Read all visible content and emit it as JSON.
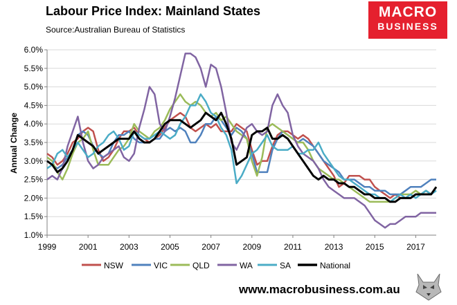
{
  "header": {
    "title": "Labour Price Index: Mainland States",
    "source": "Source:Australian Bureau of Statistics"
  },
  "logo": {
    "line1": "MACRO",
    "line2": "BUSINESS"
  },
  "footer": {
    "url": "www.macrobusiness.com.au"
  },
  "colors": {
    "NSW": "#c0504d",
    "VIC": "#4f81bd",
    "QLD": "#9bbb59",
    "WA": "#8064a2",
    "SA": "#4bacc6",
    "National": "#000000",
    "logo_bg": "#e5202e"
  },
  "chart_data": {
    "type": "line",
    "title": "Labour Price Index: Mainland States",
    "xlabel": "",
    "ylabel": "Annual Change",
    "xlim": [
      1999,
      2018
    ],
    "ylim": [
      1.0,
      6.0
    ],
    "yticks": [
      "1.0%",
      "1.5%",
      "2.0%",
      "2.5%",
      "3.0%",
      "3.5%",
      "4.0%",
      "4.5%",
      "5.0%",
      "5.5%",
      "6.0%"
    ],
    "xticks": [
      "1999",
      "2001",
      "2003",
      "2005",
      "2007",
      "2009",
      "2011",
      "2013",
      "2015",
      "2017"
    ],
    "x_start": 1999.0,
    "x_step": 0.25,
    "legend_position": "bottom",
    "series": [
      {
        "name": "NSW",
        "values": [
          3.2,
          3.1,
          2.9,
          3.0,
          3.2,
          3.5,
          3.6,
          3.8,
          3.9,
          3.8,
          3.3,
          3.0,
          3.1,
          3.3,
          3.6,
          3.8,
          3.8,
          3.9,
          3.7,
          3.6,
          3.5,
          3.6,
          3.7,
          3.9,
          4.1,
          4.2,
          4.3,
          4.2,
          3.9,
          3.8,
          3.9,
          4.0,
          3.9,
          4.0,
          3.8,
          3.8,
          3.8,
          4.0,
          3.9,
          3.8,
          3.3,
          2.9,
          3.0,
          3.0,
          3.4,
          3.7,
          3.8,
          3.8,
          3.7,
          3.6,
          3.7,
          3.6,
          3.4,
          3.2,
          3.0,
          2.8,
          2.6,
          2.3,
          2.4,
          2.6,
          2.6,
          2.6,
          2.5,
          2.5,
          2.3,
          2.2,
          2.1,
          2.0,
          2.1,
          2.0,
          2.0,
          2.0,
          2.1,
          2.1,
          2.2,
          2.1,
          2.3
        ]
      },
      {
        "name": "VIC",
        "values": [
          3.0,
          2.9,
          2.8,
          2.9,
          3.1,
          3.3,
          3.7,
          3.8,
          3.7,
          3.4,
          3.2,
          3.1,
          3.2,
          3.5,
          3.7,
          3.7,
          3.8,
          3.6,
          3.5,
          3.5,
          3.5,
          3.6,
          3.6,
          3.8,
          3.9,
          3.8,
          3.9,
          3.8,
          3.5,
          3.5,
          3.7,
          4.0,
          4.0,
          4.2,
          4.1,
          3.9,
          3.7,
          3.9,
          3.8,
          3.6,
          3.2,
          2.7,
          2.7,
          2.7,
          3.3,
          3.6,
          3.8,
          3.7,
          3.6,
          3.5,
          3.6,
          3.5,
          3.4,
          3.2,
          3.0,
          2.9,
          2.8,
          2.7,
          2.5,
          2.5,
          2.5,
          2.4,
          2.3,
          2.3,
          2.2,
          2.2,
          2.2,
          2.1,
          2.1,
          2.1,
          2.2,
          2.3,
          2.3,
          2.3,
          2.4,
          2.5,
          2.5
        ]
      },
      {
        "name": "QLD",
        "values": [
          3.1,
          3.0,
          2.7,
          2.5,
          2.8,
          3.2,
          3.5,
          3.6,
          3.8,
          3.3,
          2.9,
          2.9,
          2.9,
          3.1,
          3.3,
          3.4,
          3.6,
          4.0,
          3.8,
          3.7,
          3.6,
          3.8,
          3.9,
          4.1,
          4.4,
          4.6,
          4.8,
          4.6,
          4.5,
          4.6,
          4.5,
          4.3,
          4.2,
          4.3,
          4.1,
          4.2,
          4.0,
          3.8,
          3.7,
          3.6,
          3.0,
          2.6,
          3.1,
          3.9,
          4.0,
          3.9,
          3.8,
          3.7,
          3.6,
          3.5,
          3.5,
          3.3,
          3.0,
          2.8,
          2.7,
          2.6,
          2.5,
          2.5,
          2.4,
          2.3,
          2.2,
          2.1,
          2.0,
          1.9,
          1.9,
          1.9,
          1.9,
          1.9,
          2.0,
          2.1,
          2.1,
          2.1,
          2.2,
          2.1,
          2.2,
          2.1,
          2.3
        ]
      },
      {
        "name": "WA",
        "values": [
          2.5,
          2.6,
          2.5,
          2.8,
          3.4,
          3.8,
          4.2,
          3.5,
          3.0,
          2.8,
          2.9,
          3.1,
          3.2,
          3.3,
          3.4,
          3.1,
          3.0,
          3.2,
          3.9,
          4.4,
          5.0,
          4.8,
          4.0,
          3.8,
          4.2,
          4.7,
          5.3,
          5.9,
          5.9,
          5.8,
          5.5,
          5.0,
          5.6,
          5.5,
          5.0,
          4.3,
          3.5,
          3.3,
          3.6,
          3.9,
          4.0,
          3.8,
          3.7,
          3.8,
          4.5,
          4.8,
          4.5,
          4.3,
          3.7,
          3.4,
          3.2,
          3.1,
          3.0,
          2.8,
          2.5,
          2.3,
          2.2,
          2.1,
          2.0,
          2.0,
          2.0,
          1.9,
          1.8,
          1.6,
          1.4,
          1.3,
          1.2,
          1.3,
          1.3,
          1.4,
          1.5,
          1.5,
          1.5,
          1.6,
          1.6,
          1.6,
          1.6
        ]
      },
      {
        "name": "SA",
        "values": [
          2.8,
          2.9,
          3.2,
          3.3,
          3.1,
          3.3,
          3.5,
          3.3,
          3.1,
          3.2,
          3.4,
          3.5,
          3.7,
          3.8,
          3.6,
          3.3,
          3.4,
          3.8,
          3.7,
          3.6,
          3.6,
          3.7,
          3.8,
          3.7,
          3.6,
          3.7,
          4.0,
          4.2,
          4.5,
          4.5,
          4.8,
          4.6,
          4.3,
          4.2,
          3.9,
          3.7,
          3.3,
          2.4,
          2.6,
          2.9,
          3.2,
          3.3,
          3.5,
          3.7,
          3.4,
          3.3,
          3.3,
          3.3,
          3.4,
          3.2,
          3.2,
          3.3,
          3.3,
          3.5,
          3.2,
          3.0,
          2.8,
          2.6,
          2.5,
          2.5,
          2.4,
          2.3,
          2.2,
          2.1,
          2.1,
          2.0,
          2.0,
          1.9,
          2.0,
          2.1,
          2.0,
          2.1,
          2.0,
          2.1,
          2.2,
          2.1,
          2.2
        ]
      },
      {
        "name": "National",
        "values": [
          3.0,
          2.9,
          2.7,
          2.8,
          3.0,
          3.3,
          3.7,
          3.6,
          3.5,
          3.4,
          3.2,
          3.3,
          3.4,
          3.5,
          3.6,
          3.6,
          3.6,
          3.8,
          3.6,
          3.5,
          3.5,
          3.6,
          3.8,
          4.0,
          4.1,
          4.1,
          4.1,
          4.0,
          3.9,
          4.0,
          4.1,
          4.3,
          4.2,
          4.1,
          4.3,
          4.0,
          3.6,
          2.9,
          3.0,
          3.1,
          3.7,
          3.8,
          3.8,
          3.9,
          3.6,
          3.6,
          3.7,
          3.6,
          3.4,
          3.2,
          3.0,
          2.8,
          2.6,
          2.5,
          2.6,
          2.5,
          2.5,
          2.4,
          2.4,
          2.3,
          2.3,
          2.2,
          2.1,
          2.1,
          2.0,
          2.0,
          2.0,
          1.9,
          1.9,
          2.0,
          2.0,
          2.0,
          2.1,
          2.1,
          2.1,
          2.1,
          2.3
        ]
      }
    ]
  }
}
